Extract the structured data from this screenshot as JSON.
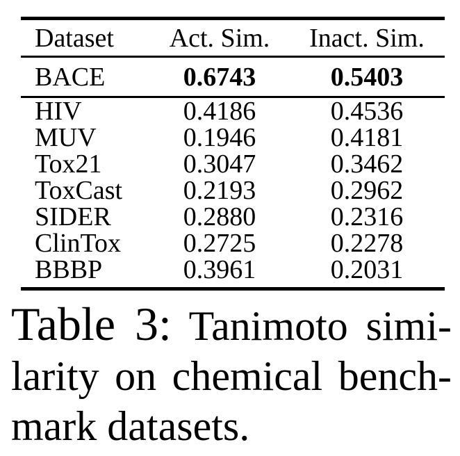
{
  "table": {
    "columns": [
      "Dataset",
      "Act. Sim.",
      "Inact. Sim."
    ],
    "highlight_row": {
      "name": "BACE",
      "act": "0.6743",
      "inact": "0.5403"
    },
    "rows": [
      {
        "name": "HIV",
        "act": "0.4186",
        "inact": "0.4536"
      },
      {
        "name": "MUV",
        "act": "0.1946",
        "inact": "0.4181"
      },
      {
        "name": "Tox21",
        "act": "0.3047",
        "inact": "0.3462"
      },
      {
        "name": "ToxCast",
        "act": "0.2193",
        "inact": "0.2962"
      },
      {
        "name": "SIDER",
        "act": "0.2880",
        "inact": "0.2316"
      },
      {
        "name": "ClinTox",
        "act": "0.2725",
        "inact": "0.2278"
      },
      {
        "name": "BBBP",
        "act": "0.3961",
        "inact": "0.2031"
      }
    ]
  },
  "caption": {
    "label": "Table 3:",
    "line1_rest": "Tanimoto simi-",
    "line2": "larity on chemical bench-",
    "line3": "mark datasets.",
    "full_text": "Table 3: Tanimoto similarity on chemical benchmark datasets."
  },
  "colors": {
    "text": "#000000",
    "background": "#ffffff",
    "rule": "#000000"
  }
}
